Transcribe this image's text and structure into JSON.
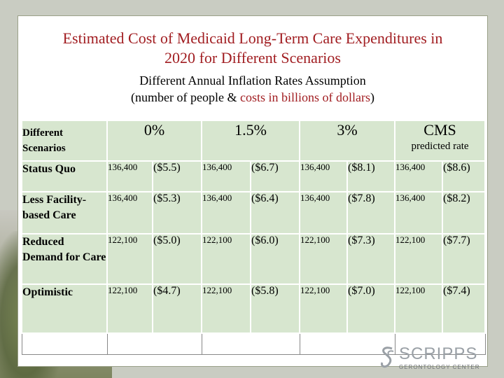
{
  "title_line1": "Estimated Cost of Medicaid Long-Term Care Expenditures in",
  "title_line2": "2020 for Different Scenarios",
  "subtitle_line1": "Different Annual Inflation Rates Assumption",
  "subtitle_prefix": "(number of people & ",
  "subtitle_red": "costs in billions of dollars",
  "subtitle_suffix": ")",
  "colors": {
    "title": "#a11d21",
    "cell": "#d7e6cf",
    "accent_red": "#a11d21"
  },
  "table": {
    "header": {
      "scenario_label": "Different Scenarios",
      "rates": [
        "0%",
        "1.5%",
        "3%",
        "CMS"
      ],
      "cms_sub": "predicted rate"
    },
    "rows": [
      {
        "label": "Status Quo",
        "cells": [
          [
            "136,400",
            "($5.5)"
          ],
          [
            "136,400",
            "($6.7)"
          ],
          [
            "136,400",
            "($8.1)"
          ],
          [
            "136,400",
            "($8.6)"
          ]
        ]
      },
      {
        "label": "Less Facility-based Care",
        "cells": [
          [
            "136,400",
            "($5.3)"
          ],
          [
            "136,400",
            "($6.4)"
          ],
          [
            "136,400",
            "($7.8)"
          ],
          [
            "136,400",
            "($8.2)"
          ]
        ]
      },
      {
        "label": "Reduced Demand for Care",
        "cells": [
          [
            "122,100",
            "($5.0)"
          ],
          [
            "122,100",
            "($6.0)"
          ],
          [
            "122,100",
            "($7.3)"
          ],
          [
            "122,100",
            "($7.7)"
          ]
        ]
      },
      {
        "label": "Optimistic",
        "cells": [
          [
            "122,100",
            "($4.7)"
          ],
          [
            "122,100",
            "($5.8)"
          ],
          [
            "122,100",
            "($7.0)"
          ],
          [
            "122,100",
            "($7.4)"
          ]
        ]
      }
    ]
  },
  "logo": {
    "name": "SCRIPPS",
    "sub": "GERONTOLOGY CENTER",
    "icon": "scripps-logo-icon"
  }
}
